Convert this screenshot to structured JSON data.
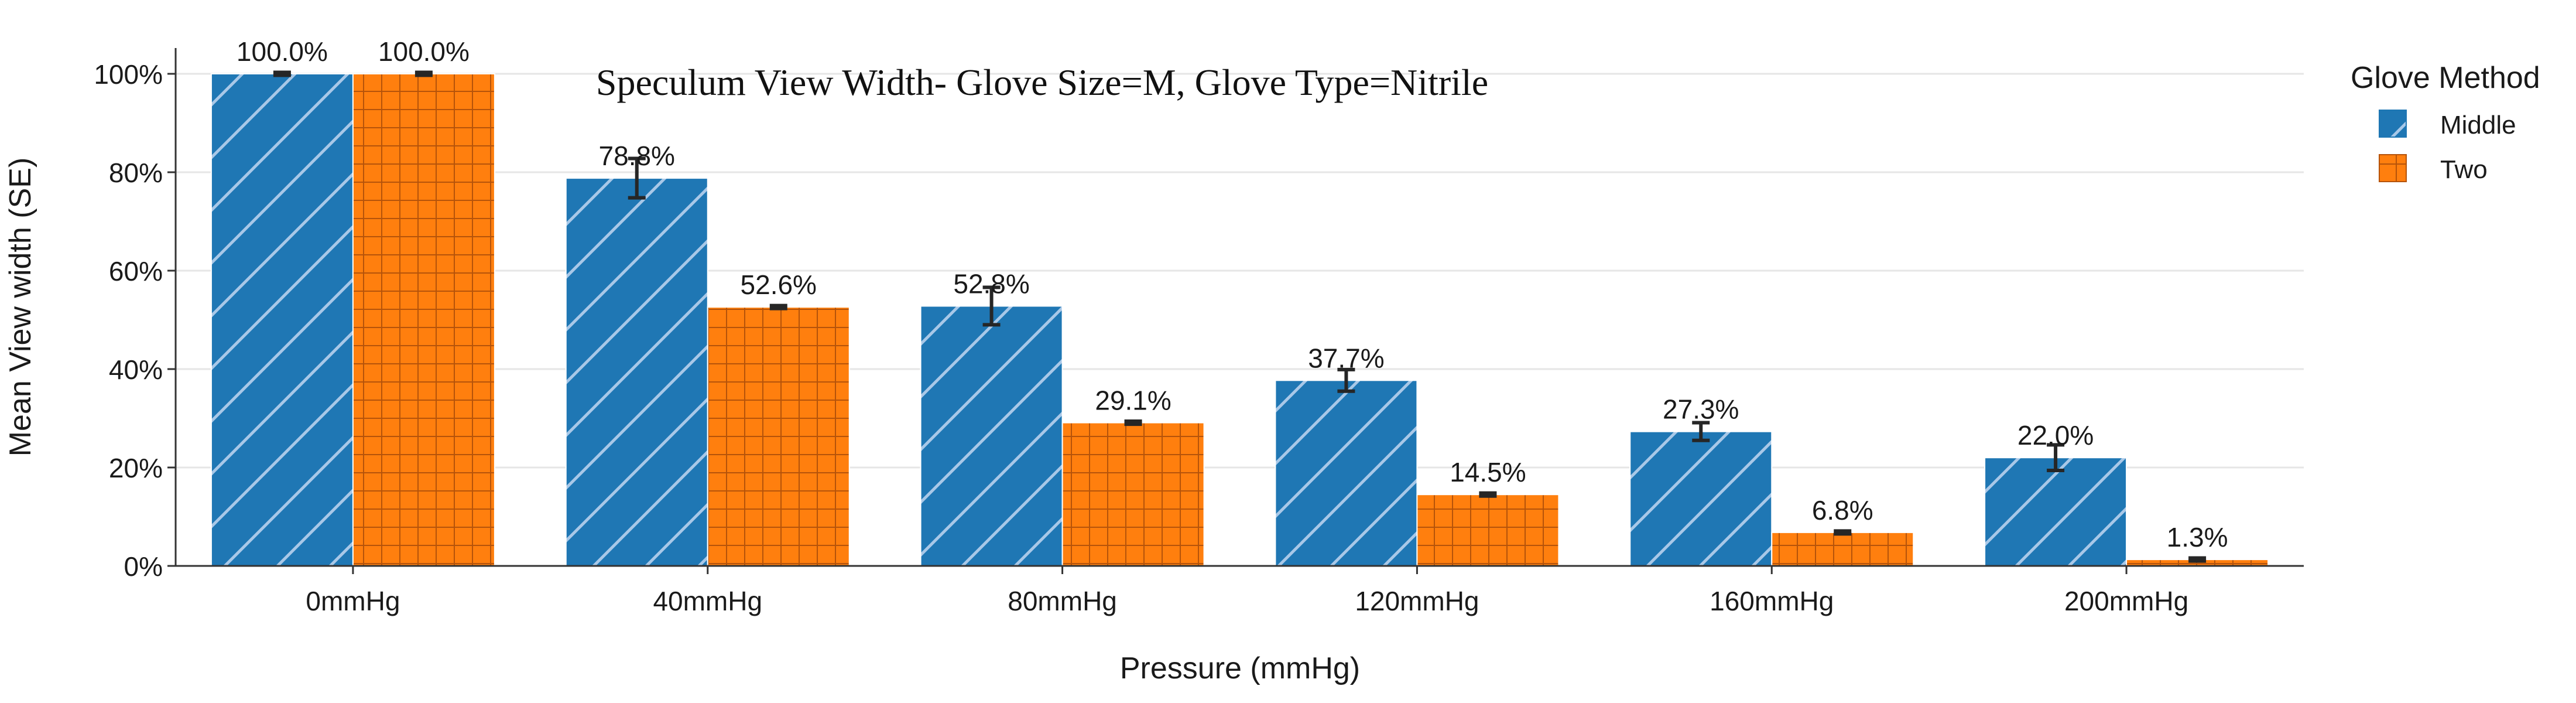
{
  "chart_data": {
    "type": "bar",
    "title": "Speculum View Width- Glove Size=M, Glove Type=Nitrile",
    "xlabel": "Pressure (mmHg)",
    "ylabel": "Mean View width (SE)",
    "categories": [
      "0mmHg",
      "40mmHg",
      "80mmHg",
      "120mmHg",
      "160mmHg",
      "200mmHg"
    ],
    "ylim": [
      0,
      100
    ],
    "y_ticks": [
      0,
      20,
      40,
      60,
      80,
      100
    ],
    "y_tick_labels": [
      "0%",
      "20%",
      "40%",
      "60%",
      "80%",
      "100%"
    ],
    "grid": "horizontal",
    "legend": {
      "title": "Glove Method",
      "placement": "right"
    },
    "series": [
      {
        "name": "Middle",
        "color": "#1f77b4",
        "pattern": "diagonal-hatch",
        "values": [
          100.0,
          78.8,
          52.8,
          37.7,
          27.3,
          22.0
        ],
        "errors": [
          0.3,
          4.0,
          3.8,
          2.2,
          1.8,
          2.6
        ],
        "labels": [
          "100.0%",
          "78.8%",
          "52.8%",
          "37.7%",
          "27.3%",
          "22.0%"
        ]
      },
      {
        "name": "Two",
        "color": "#ff7f0e",
        "pattern": "grid-hatch",
        "values": [
          100.0,
          52.6,
          29.1,
          14.5,
          6.8,
          1.3
        ],
        "errors": [
          0.3,
          0.3,
          0.3,
          0.3,
          0.3,
          0.3
        ],
        "labels": [
          "100.0%",
          "52.6%",
          "29.1%",
          "14.5%",
          "6.8%",
          "1.3%"
        ]
      }
    ]
  }
}
